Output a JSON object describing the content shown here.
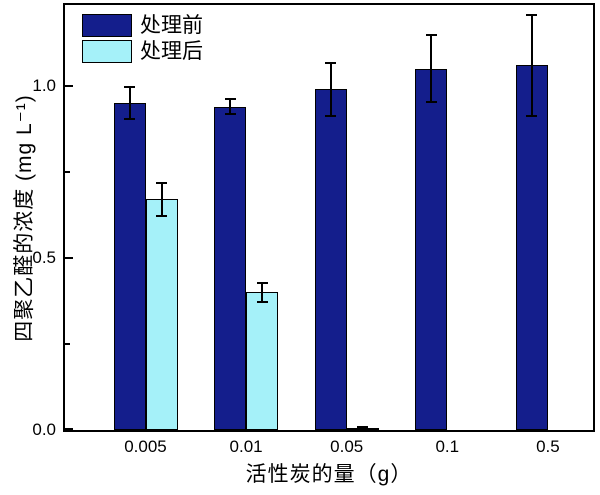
{
  "chart_data": {
    "type": "bar",
    "title": "",
    "categories": [
      "0.005",
      "0.01",
      "0.05",
      "0.1",
      "0.5"
    ],
    "series": [
      {
        "name": "处理前",
        "color": "#141E8C",
        "values": [
          0.95,
          0.94,
          0.99,
          1.05,
          1.06
        ],
        "errors": [
          0.05,
          0.025,
          0.08,
          0.1,
          0.15
        ]
      },
      {
        "name": "处理后",
        "color": "#A5F1F9",
        "values": [
          0.67,
          0.4,
          0.005,
          0,
          0
        ],
        "errors": [
          0.05,
          0.03,
          0.005,
          0,
          0
        ]
      }
    ],
    "xlabel": "活性炭的量（g）",
    "ylabel": "四聚乙醛的浓度 (mg L⁻¹)",
    "ylim": [
      0,
      1.235
    ],
    "yticks_major": [
      {
        "value": 0.0,
        "label": "0.0"
      },
      {
        "value": 0.5,
        "label": "0.5"
      },
      {
        "value": 1.0,
        "label": "1.0"
      }
    ],
    "yticks_minor": [
      0.25,
      0.75
    ],
    "grid": false,
    "legend_position": "top-left",
    "frame_color": "#000000",
    "error_bar_color": "#000000",
    "bar_border_color": "#000000"
  }
}
